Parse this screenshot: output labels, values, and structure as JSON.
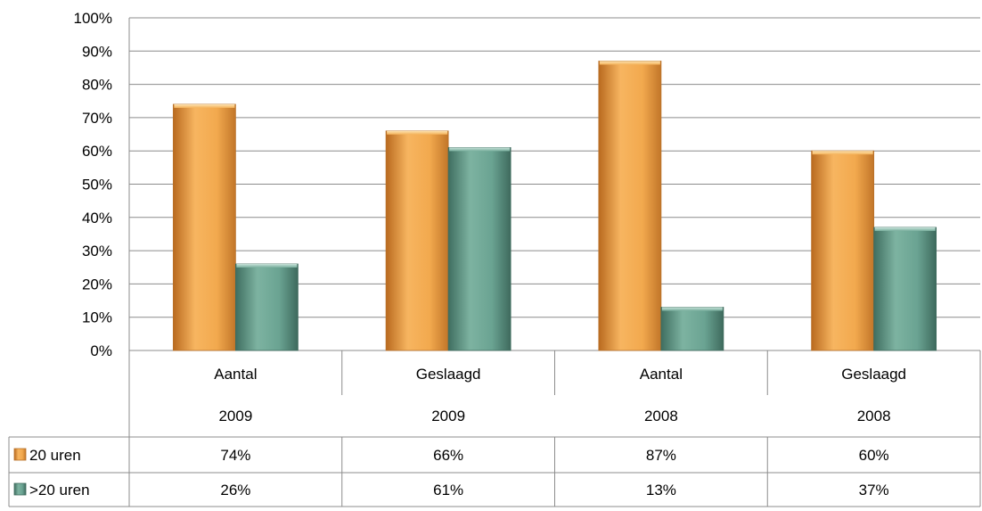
{
  "chart_data": {
    "type": "bar",
    "title": "",
    "xlabel": "",
    "ylabel": "",
    "ylim": [
      0,
      100
    ],
    "y_ticks": [
      "0%",
      "10%",
      "20%",
      "30%",
      "40%",
      "50%",
      "60%",
      "70%",
      "80%",
      "90%",
      "100%"
    ],
    "grid": true,
    "legend": "data-table",
    "categories_row1": [
      "Aantal",
      "Geslaagd",
      "Aantal",
      "Geslaagd"
    ],
    "categories_row2": [
      "2009",
      "2009",
      "2008",
      "2008"
    ],
    "series": [
      {
        "name": "20 uren",
        "color": "#F0A548",
        "values": [
          74,
          66,
          87,
          60
        ],
        "labels": [
          "74%",
          "66%",
          "87%",
          "60%"
        ]
      },
      {
        "name": ">20 uren",
        "color": "#5E9684",
        "values": [
          26,
          61,
          13,
          37
        ],
        "labels": [
          "26%",
          "61%",
          "13%",
          "37%"
        ]
      }
    ]
  }
}
